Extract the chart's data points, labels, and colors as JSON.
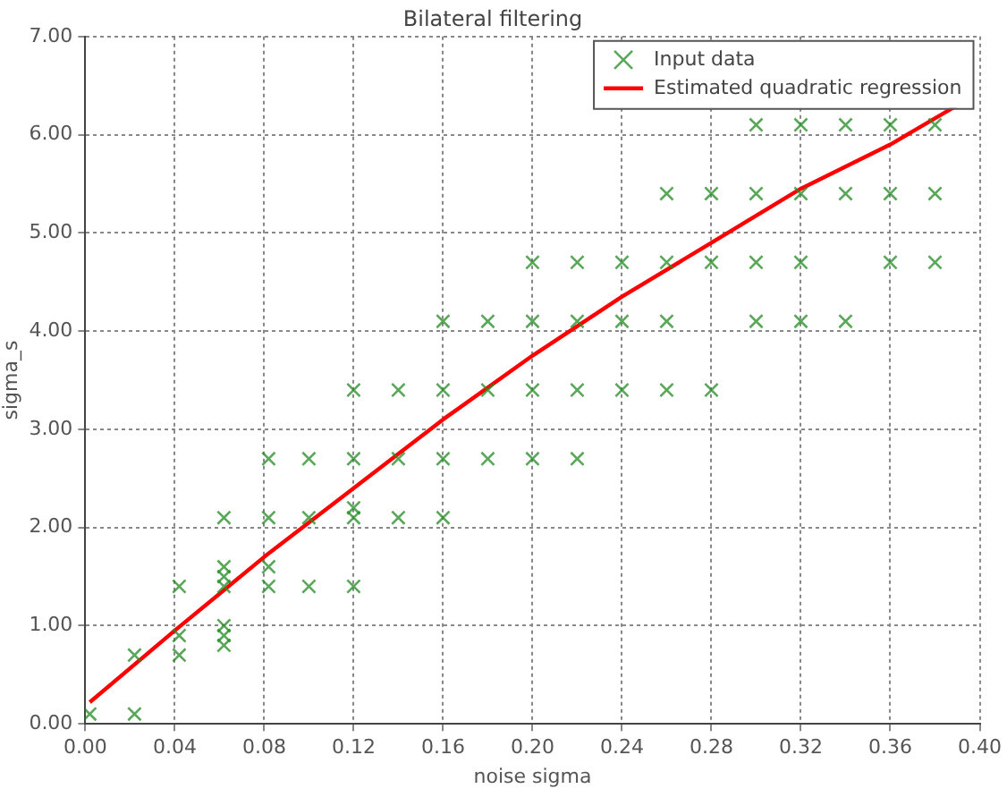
{
  "chart_data": {
    "type": "scatter",
    "title": "Bilateral filtering",
    "xlabel": "noise sigma",
    "ylabel": "sigma_s",
    "xlim": [
      0,
      0.4
    ],
    "ylim": [
      0,
      7
    ],
    "xticks": [
      {
        "value": 0,
        "label": "0.00"
      },
      {
        "value": 0.04,
        "label": "0.04"
      },
      {
        "value": 0.08,
        "label": "0.08"
      },
      {
        "value": 0.12,
        "label": "0.12"
      },
      {
        "value": 0.16,
        "label": "0.16"
      },
      {
        "value": 0.2,
        "label": "0.20"
      },
      {
        "value": 0.24,
        "label": "0.24"
      },
      {
        "value": 0.28,
        "label": "0.28"
      },
      {
        "value": 0.32,
        "label": "0.32"
      },
      {
        "value": 0.36,
        "label": "0.36"
      },
      {
        "value": 0.4,
        "label": "0.40"
      }
    ],
    "yticks": [
      {
        "value": 0,
        "label": "0.00"
      },
      {
        "value": 1,
        "label": "1.00"
      },
      {
        "value": 2,
        "label": "2.00"
      },
      {
        "value": 3,
        "label": "3.00"
      },
      {
        "value": 4,
        "label": "4.00"
      },
      {
        "value": 5,
        "label": "5.00"
      },
      {
        "value": 6,
        "label": "6.00"
      },
      {
        "value": 7,
        "label": "7.00"
      }
    ],
    "grid": true,
    "legend": "top right",
    "series": [
      {
        "name": "Input data",
        "marker": "cross",
        "color": "#228b22",
        "x": [
          0.002,
          0.022,
          0.022,
          0.042,
          0.042,
          0.042,
          0.062,
          0.062,
          0.062,
          0.062,
          0.062,
          0.062,
          0.062,
          0.082,
          0.082,
          0.082,
          0.082,
          0.1,
          0.1,
          0.1,
          0.12,
          0.12,
          0.12,
          0.12,
          0.12,
          0.14,
          0.14,
          0.14,
          0.16,
          0.16,
          0.16,
          0.16,
          0.18,
          0.18,
          0.18,
          0.2,
          0.2,
          0.2,
          0.2,
          0.22,
          0.22,
          0.22,
          0.22,
          0.24,
          0.24,
          0.24,
          0.26,
          0.26,
          0.26,
          0.26,
          0.28,
          0.28,
          0.28,
          0.3,
          0.3,
          0.3,
          0.3,
          0.32,
          0.32,
          0.32,
          0.32,
          0.34,
          0.34,
          0.34,
          0.36,
          0.36,
          0.36,
          0.38,
          0.38,
          0.38
        ],
        "values": [
          0.1,
          0.7,
          0.1,
          1.4,
          0.9,
          0.7,
          2.1,
          1.6,
          1.5,
          1.4,
          1.0,
          0.9,
          0.8,
          2.7,
          2.1,
          1.6,
          1.4,
          2.7,
          2.1,
          1.4,
          3.4,
          2.7,
          2.2,
          2.1,
          1.4,
          3.4,
          2.7,
          2.1,
          4.1,
          3.4,
          2.7,
          2.1,
          4.1,
          3.4,
          2.7,
          4.7,
          4.1,
          3.4,
          2.7,
          4.7,
          4.1,
          3.4,
          2.7,
          4.7,
          4.1,
          3.4,
          5.4,
          4.7,
          4.1,
          3.4,
          5.4,
          4.7,
          3.4,
          6.1,
          5.4,
          4.7,
          4.1,
          6.1,
          5.4,
          4.7,
          4.1,
          6.1,
          5.4,
          4.1,
          6.1,
          5.4,
          4.7,
          6.1,
          5.4,
          4.7
        ]
      },
      {
        "name": "Estimated quadratic regression",
        "type": "line",
        "marker": "none",
        "line_style": "solid",
        "color": "#ff0000",
        "x": [
          0.002,
          0.04,
          0.08,
          0.12,
          0.16,
          0.2,
          0.24,
          0.28,
          0.32,
          0.36,
          0.39
        ],
        "values": [
          0.22,
          0.95,
          1.7,
          2.4,
          3.1,
          3.75,
          4.35,
          4.9,
          5.45,
          5.9,
          6.3
        ]
      }
    ]
  }
}
